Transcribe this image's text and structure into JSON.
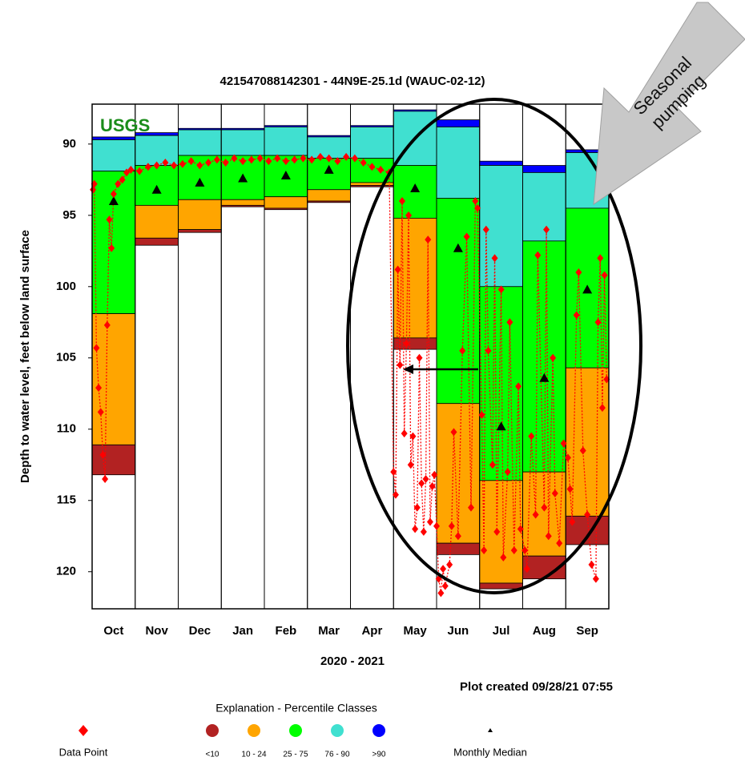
{
  "chart_data": {
    "type": "percentile",
    "title": "421547088142301 - 44N9E-25.1d (WAUC-02-12)",
    "y_label": "Depth to water level, feet below land surface",
    "x_label": "2020 - 2021",
    "credit": "Plot created 09/28/21 07:55",
    "logo": "USGS",
    "legend_title": "Explanation - Percentile Classes",
    "annotation_lines": [
      "Seasonal",
      "pumping"
    ],
    "categories": [
      "Oct",
      "Nov",
      "Dec",
      "Jan",
      "Feb",
      "Mar",
      "Apr",
      "May",
      "Jun",
      "Jul",
      "Aug",
      "Sep"
    ],
    "ylim": [
      87.2,
      122.6
    ],
    "y_inverted": true,
    "yticks": [
      90,
      95,
      100,
      105,
      110,
      115,
      120
    ],
    "classes": [
      {
        "name": "<10",
        "color": "#b22222"
      },
      {
        "name": "10 - 24",
        "color": "#ffa500"
      },
      {
        "name": "25 - 75",
        "color": "#00ff00"
      },
      {
        "name": "76 - 90",
        "color": "#40e0d0"
      },
      {
        "name": ">90",
        "color": "#0000ff"
      }
    ],
    "bounds": [
      [
        89.5,
        89.7,
        91.9,
        101.9,
        111.1,
        113.2
      ],
      [
        89.2,
        89.4,
        91.5,
        94.3,
        96.6,
        97.1
      ],
      [
        88.9,
        89.0,
        90.8,
        93.9,
        96.0,
        96.2
      ],
      [
        88.9,
        89.0,
        90.8,
        93.9,
        94.3,
        94.4
      ],
      [
        88.7,
        88.8,
        90.8,
        93.7,
        94.5,
        94.6
      ],
      [
        89.4,
        89.5,
        91.0,
        93.2,
        94.0,
        94.1
      ],
      [
        88.7,
        88.8,
        91.0,
        92.7,
        92.9,
        93.0
      ],
      [
        87.6,
        87.7,
        91.5,
        95.2,
        103.6,
        104.4
      ],
      [
        88.3,
        88.8,
        93.8,
        108.2,
        118.0,
        118.8
      ],
      [
        91.2,
        91.5,
        100.0,
        113.6,
        120.8,
        121.2
      ],
      [
        91.5,
        92.0,
        96.8,
        113.0,
        118.9,
        120.5
      ],
      [
        90.4,
        90.6,
        94.5,
        105.7,
        116.1,
        118.1
      ]
    ],
    "median": {
      "name": "Monthly Median",
      "color": "#000000",
      "values": [
        94.0,
        93.2,
        92.7,
        92.4,
        92.2,
        91.8,
        null,
        93.1,
        97.3,
        109.8,
        106.4,
        100.2
      ]
    },
    "points": {
      "name": "Data Point",
      "color": "#ff0000",
      "xlim": [
        0,
        12
      ],
      "x": [
        0.02,
        0.05,
        0.1,
        0.15,
        0.2,
        0.25,
        0.3,
        0.35,
        0.4,
        0.45,
        0.5,
        0.6,
        0.7,
        0.8,
        0.9,
        1.1,
        1.3,
        1.5,
        1.7,
        1.9,
        2.1,
        2.3,
        2.5,
        2.7,
        2.9,
        3.1,
        3.3,
        3.5,
        3.7,
        3.9,
        4.1,
        4.3,
        4.5,
        4.7,
        4.9,
        5.1,
        5.3,
        5.5,
        5.7,
        5.9,
        6.1,
        6.3,
        6.5,
        6.7,
        6.9,
        7.0,
        7.05,
        7.1,
        7.15,
        7.2,
        7.25,
        7.3,
        7.35,
        7.4,
        7.45,
        7.5,
        7.55,
        7.6,
        7.65,
        7.7,
        7.75,
        7.8,
        7.85,
        7.9,
        7.95,
        8.0,
        8.05,
        8.1,
        8.15,
        8.2,
        8.3,
        8.35,
        8.4,
        8.5,
        8.6,
        8.7,
        8.8,
        8.9,
        8.95,
        9.05,
        9.1,
        9.15,
        9.2,
        9.3,
        9.35,
        9.4,
        9.5,
        9.55,
        9.65,
        9.7,
        9.8,
        9.9,
        9.95,
        10.05,
        10.1,
        10.2,
        10.3,
        10.35,
        10.5,
        10.55,
        10.6,
        10.7,
        10.75,
        10.85,
        10.95,
        11.05,
        11.1,
        11.15,
        11.25,
        11.3,
        11.4,
        11.5,
        11.6,
        11.7,
        11.75,
        11.8,
        11.85,
        11.9,
        11.95
      ],
      "values": [
        93.2,
        92.8,
        104.3,
        107.1,
        108.8,
        111.8,
        113.5,
        102.7,
        95.3,
        97.3,
        93.5,
        92.8,
        92.5,
        92.0,
        91.8,
        91.9,
        91.6,
        91.5,
        91.3,
        91.5,
        91.4,
        91.2,
        91.5,
        91.3,
        91.1,
        91.3,
        91.0,
        91.2,
        91.1,
        91.0,
        91.2,
        91.0,
        91.2,
        91.1,
        91.0,
        91.1,
        90.9,
        91.0,
        91.2,
        90.9,
        91.0,
        91.3,
        91.6,
        91.8,
        92.0,
        113.0,
        114.6,
        98.8,
        105.5,
        94.0,
        110.3,
        104.0,
        95.0,
        112.5,
        110.5,
        117.0,
        115.5,
        105.0,
        113.8,
        117.2,
        113.5,
        96.7,
        116.5,
        114.0,
        113.2,
        116.8,
        120.5,
        121.5,
        119.8,
        121.0,
        119.5,
        116.8,
        110.2,
        117.5,
        104.5,
        96.5,
        115.5,
        94.0,
        94.5,
        109.0,
        118.5,
        96.0,
        104.5,
        112.5,
        98.0,
        117.2,
        100.2,
        119.0,
        113.0,
        102.5,
        118.5,
        107.0,
        117.0,
        118.5,
        119.8,
        110.5,
        116.0,
        97.8,
        115.5,
        96.0,
        117.5,
        105.0,
        114.5,
        118.0,
        111.0,
        112.0,
        114.2,
        116.5,
        102.0,
        99.0,
        111.5,
        116.0,
        119.5,
        120.5,
        102.5,
        98.0,
        108.5,
        99.2,
        106.5
      ]
    }
  }
}
